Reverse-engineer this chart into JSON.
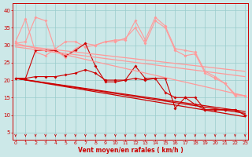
{
  "bg_color": "#cce8e8",
  "grid_color": "#99cccc",
  "line_color_dark": "#cc0000",
  "line_color_light": "#ff9999",
  "xlabel": "Vent moyen/en rafales ( km/h )",
  "xlabel_color": "#cc0000",
  "ylabel_ticks": [
    5,
    10,
    15,
    20,
    25,
    30,
    35,
    40
  ],
  "x_ticks": [
    0,
    1,
    2,
    3,
    4,
    5,
    6,
    7,
    8,
    9,
    10,
    11,
    12,
    13,
    14,
    15,
    16,
    17,
    18,
    19,
    20,
    21,
    22,
    23
  ],
  "zigzag_light_1": [
    30.5,
    31.0,
    38.0,
    37.0,
    28.5,
    26.5,
    29.0,
    30.5,
    30.0,
    31.0,
    31.5,
    31.5,
    37.0,
    31.5,
    38.0,
    35.5,
    29.0,
    28.5,
    28.0,
    22.5,
    21.0,
    19.0,
    16.0,
    15.5
  ],
  "zigzag_light_2": [
    31.0,
    37.5,
    28.0,
    27.0,
    29.0,
    31.0,
    31.0,
    29.5,
    30.0,
    31.0,
    31.0,
    32.0,
    35.0,
    30.5,
    37.0,
    35.0,
    28.5,
    27.0,
    27.5,
    22.0,
    20.5,
    19.0,
    15.5,
    15.5
  ],
  "zigzag_dark_1": [
    20.5,
    20.5,
    28.5,
    28.5,
    28.5,
    27.0,
    28.5,
    30.5,
    24.0,
    19.5,
    19.5,
    20.0,
    24.0,
    20.5,
    20.5,
    20.5,
    12.0,
    15.0,
    15.0,
    11.5,
    11.5,
    11.5,
    11.5,
    10.0
  ],
  "zigzag_dark_2": [
    20.5,
    20.5,
    21.0,
    21.0,
    21.0,
    21.5,
    22.0,
    23.0,
    22.0,
    20.0,
    20.0,
    20.0,
    20.5,
    20.0,
    20.5,
    16.5,
    15.0,
    15.0,
    13.0,
    11.5,
    11.5,
    11.5,
    11.5,
    10.0
  ],
  "trend_light_1": [
    30.5,
    15.5
  ],
  "trend_light_2": [
    30.0,
    22.5
  ],
  "trend_light_3": [
    29.5,
    21.0
  ],
  "trend_dark_1": [
    20.5,
    9.5
  ],
  "trend_dark_2": [
    20.5,
    10.5
  ],
  "trend_dark_3": [
    20.5,
    11.0
  ],
  "ylim": [
    3,
    42
  ],
  "xlim": [
    -0.3,
    23.3
  ]
}
